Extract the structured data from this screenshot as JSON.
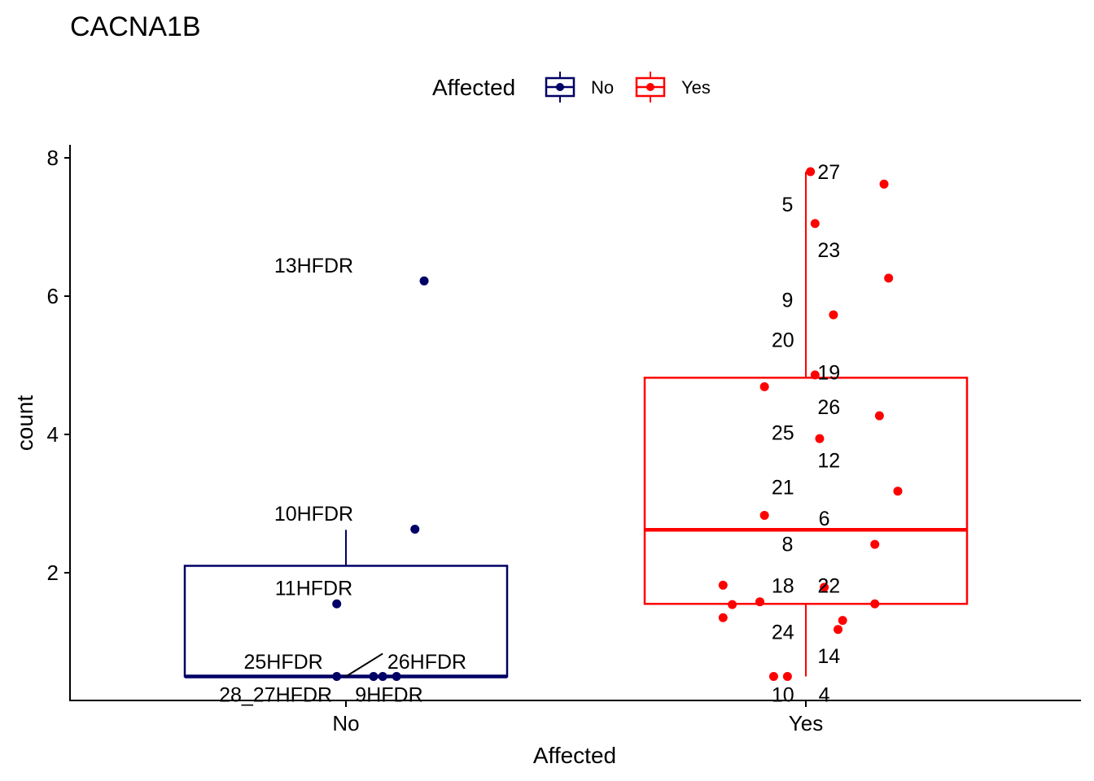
{
  "chart_data": {
    "type": "box",
    "title": "CACNA1B",
    "xlabel": "Affected",
    "ylabel": "count",
    "legend": {
      "title": "Affected",
      "position": "top",
      "entries": [
        {
          "label": "No",
          "color": "#000066"
        },
        {
          "label": "Yes",
          "color": "#FF0000"
        }
      ]
    },
    "categories": [
      "No",
      "Yes"
    ],
    "y_ticks": [
      "2",
      "4",
      "6",
      "8"
    ],
    "ylim": [
      0.2,
      8.15
    ],
    "boxes": [
      {
        "category": "No",
        "color": "#000066",
        "whisker_low": 0.5,
        "q1": 0.5,
        "median": 0.5,
        "q3": 2.1,
        "whisker_high": 2.62
      },
      {
        "category": "Yes",
        "color": "#FF0000",
        "whisker_low": 0.5,
        "q1": 1.55,
        "median": 2.62,
        "q3": 4.82,
        "whisker_high": 7.8
      }
    ],
    "series": [
      {
        "name": "No",
        "color": "#000066",
        "points": [
          {
            "x": 0.17,
            "y": 6.22,
            "label": "13HFDR"
          },
          {
            "x": 0.15,
            "y": 2.63,
            "label": "10HFDR"
          },
          {
            "x": -0.02,
            "y": 1.55,
            "label": "11HFDR"
          },
          {
            "x": -0.02,
            "y": 0.5,
            "label": "25HFDR"
          },
          {
            "x": 0.06,
            "y": 0.5,
            "label": "26HFDR"
          },
          {
            "x": 0.08,
            "y": 0.5,
            "label": "28_27HFDR"
          },
          {
            "x": 0.11,
            "y": 0.5,
            "label": "9HFDR"
          }
        ]
      },
      {
        "name": "Yes",
        "color": "#FF0000",
        "points": [
          {
            "x": 0.01,
            "y": 7.8,
            "label": "27"
          },
          {
            "x": 0.17,
            "y": 7.62,
            "label": "5"
          },
          {
            "x": 0.02,
            "y": 7.05,
            "label": "23"
          },
          {
            "x": 0.18,
            "y": 6.26,
            "label": "9"
          },
          {
            "x": 0.06,
            "y": 5.73,
            "label": "20"
          },
          {
            "x": 0.02,
            "y": 4.86,
            "label": "19"
          },
          {
            "x": -0.09,
            "y": 4.69,
            "label": "26"
          },
          {
            "x": 0.16,
            "y": 4.27,
            "label": "25"
          },
          {
            "x": 0.03,
            "y": 3.94,
            "label": "12"
          },
          {
            "x": 0.2,
            "y": 3.18,
            "label": "21"
          },
          {
            "x": -0.09,
            "y": 2.83,
            "label": "6"
          },
          {
            "x": 0.15,
            "y": 2.41,
            "label": "8"
          },
          {
            "x": -0.18,
            "y": 1.82,
            "label": "18"
          },
          {
            "x": 0.04,
            "y": 1.79,
            "label": "22"
          },
          {
            "x": -0.1,
            "y": 1.58,
            "label": "24"
          },
          {
            "x": -0.16,
            "y": 1.54,
            "label": "14"
          },
          {
            "x": 0.15,
            "y": 1.55,
            "label": "10"
          },
          {
            "x": -0.18,
            "y": 1.35,
            "label": "4"
          },
          {
            "x": 0.08,
            "y": 1.31,
            "label": ""
          },
          {
            "x": 0.07,
            "y": 1.18,
            "label": ""
          },
          {
            "x": -0.07,
            "y": 0.5,
            "label": ""
          },
          {
            "x": -0.04,
            "y": 0.5,
            "label": ""
          }
        ]
      }
    ],
    "labels": [
      {
        "text": "13HFDR",
        "series": "No",
        "x": -0.07,
        "y": 6.45,
        "anchor": "middle"
      },
      {
        "text": "10HFDR",
        "series": "No",
        "x": -0.07,
        "y": 2.86,
        "anchor": "middle"
      },
      {
        "text": "11HFDR",
        "series": "No",
        "x": -0.07,
        "y": 1.78,
        "anchor": "middle"
      },
      {
        "text": "25HFDR",
        "series": "No",
        "x": -0.05,
        "y": 0.72,
        "anchor": "end"
      },
      {
        "text": "26HFDR",
        "series": "No",
        "x": 0.09,
        "y": 0.72,
        "anchor": "start"
      },
      {
        "text": "28_27HFDR",
        "series": "No",
        "x": -0.03,
        "y": 0.24,
        "anchor": "end"
      },
      {
        "text": "9HFDR",
        "series": "No",
        "x": 0.02,
        "y": 0.24,
        "anchor": "start"
      },
      {
        "text": "27",
        "series": "Yes",
        "x": 0.05,
        "y": 7.8,
        "anchor": "middle"
      },
      {
        "text": "5",
        "series": "Yes",
        "x": -0.04,
        "y": 7.33,
        "anchor": "middle"
      },
      {
        "text": "23",
        "series": "Yes",
        "x": 0.05,
        "y": 6.67,
        "anchor": "middle"
      },
      {
        "text": "9",
        "series": "Yes",
        "x": -0.04,
        "y": 5.95,
        "anchor": "middle"
      },
      {
        "text": "20",
        "series": "Yes",
        "x": -0.05,
        "y": 5.37,
        "anchor": "middle"
      },
      {
        "text": "19",
        "series": "Yes",
        "x": 0.05,
        "y": 4.9,
        "anchor": "middle"
      },
      {
        "text": "26",
        "series": "Yes",
        "x": 0.05,
        "y": 4.4,
        "anchor": "middle"
      },
      {
        "text": "25",
        "series": "Yes",
        "x": -0.05,
        "y": 4.03,
        "anchor": "middle"
      },
      {
        "text": "12",
        "series": "Yes",
        "x": 0.05,
        "y": 3.63,
        "anchor": "middle"
      },
      {
        "text": "21",
        "series": "Yes",
        "x": -0.05,
        "y": 3.24,
        "anchor": "middle"
      },
      {
        "text": "6",
        "series": "Yes",
        "x": 0.04,
        "y": 2.79,
        "anchor": "middle"
      },
      {
        "text": "8",
        "series": "Yes",
        "x": -0.04,
        "y": 2.42,
        "anchor": "middle"
      },
      {
        "text": "18",
        "series": "Yes",
        "x": -0.05,
        "y": 1.82,
        "anchor": "middle"
      },
      {
        "text": "22",
        "series": "Yes",
        "x": 0.05,
        "y": 1.82,
        "anchor": "middle"
      },
      {
        "text": "24",
        "series": "Yes",
        "x": -0.05,
        "y": 1.15,
        "anchor": "middle"
      },
      {
        "text": "14",
        "series": "Yes",
        "x": 0.05,
        "y": 0.8,
        "anchor": "middle"
      },
      {
        "text": "10",
        "series": "Yes",
        "x": -0.05,
        "y": 0.24,
        "anchor": "middle"
      },
      {
        "text": "4",
        "series": "Yes",
        "x": 0.04,
        "y": 0.24,
        "anchor": "middle"
      }
    ],
    "connectors": [
      {
        "series": "No",
        "x1": 0.0,
        "y1": 0.5,
        "x2": 0.08,
        "y2": 0.83
      }
    ],
    "grid": false
  }
}
